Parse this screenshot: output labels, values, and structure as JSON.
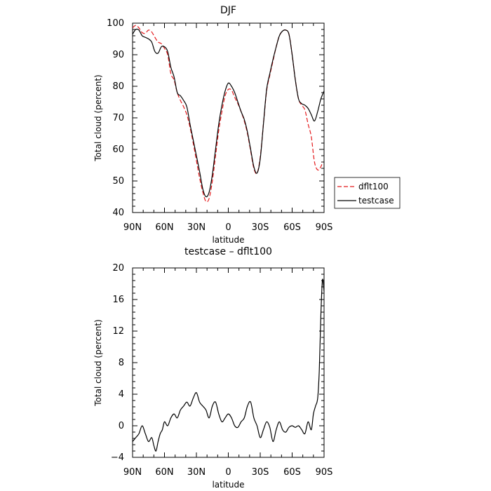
{
  "chart_data": [
    {
      "type": "line",
      "title": "DJF",
      "xlabel": "latitude",
      "ylabel": "Total cloud (percent)",
      "xlim": [
        -90,
        90
      ],
      "ylim": [
        40,
        100
      ],
      "xticks": [
        -90,
        -60,
        -30,
        0,
        30,
        60,
        90
      ],
      "xtick_labels": [
        "90N",
        "60N",
        "30N",
        "0",
        "30S",
        "60S",
        "90S"
      ],
      "yticks": [
        40,
        50,
        60,
        70,
        80,
        90,
        100
      ],
      "ytick_labels": [
        "40",
        "50",
        "60",
        "70",
        "80",
        "90",
        "100"
      ],
      "legend_position": "right",
      "grid": false,
      "series": [
        {
          "name": "dflt100",
          "color": "#e41a1c",
          "dash": "dashed",
          "x": [
            -90,
            -87,
            -84,
            -81,
            -78,
            -75,
            -72,
            -69,
            -66,
            -63,
            -60,
            -57,
            -54,
            -51,
            -48,
            -45,
            -42,
            -39,
            -36,
            -33,
            -30,
            -27,
            -24,
            -21,
            -18,
            -15,
            -12,
            -9,
            -6,
            -3,
            0,
            3,
            6,
            9,
            12,
            15,
            18,
            21,
            24,
            27,
            30,
            33,
            36,
            39,
            42,
            45,
            48,
            51,
            54,
            57,
            60,
            63,
            66,
            69,
            72,
            75,
            78,
            81,
            84,
            87,
            88.5
          ],
          "y": [
            98.5,
            99.3,
            98.5,
            97.0,
            96.8,
            97.8,
            97.2,
            95.5,
            94.0,
            93.5,
            92.0,
            90.0,
            84.0,
            82.0,
            78.0,
            75.5,
            73.5,
            71.0,
            67.0,
            62.0,
            56.5,
            51.0,
            46.5,
            43.5,
            44.5,
            50.0,
            58.0,
            66.0,
            72.0,
            77.0,
            79.0,
            78.8,
            76.5,
            74.5,
            72.0,
            69.0,
            65.0,
            59.5,
            54.0,
            52.5,
            57.5,
            68.0,
            78.5,
            83.5,
            88.0,
            92.5,
            96.0,
            97.5,
            97.8,
            96.5,
            90.0,
            82.0,
            76.0,
            74.0,
            72.5,
            68.0,
            64.0,
            56.0,
            53.5,
            54.5,
            56.0
          ]
        },
        {
          "name": "testcase",
          "color": "#000000",
          "dash": "solid",
          "x": [
            -90,
            -87,
            -84,
            -81,
            -78,
            -75,
            -72,
            -69,
            -66,
            -63,
            -60,
            -57,
            -54,
            -51,
            -48,
            -45,
            -42,
            -39,
            -36,
            -33,
            -30,
            -27,
            -24,
            -21,
            -18,
            -15,
            -12,
            -9,
            -6,
            -3,
            0,
            3,
            6,
            9,
            12,
            15,
            18,
            21,
            24,
            27,
            30,
            33,
            36,
            39,
            42,
            45,
            48,
            51,
            54,
            57,
            60,
            63,
            66,
            69,
            72,
            75,
            78,
            81,
            84,
            87,
            90
          ],
          "y": [
            96.5,
            98.0,
            97.8,
            96.0,
            95.5,
            95.0,
            94.0,
            91.0,
            90.5,
            92.5,
            92.5,
            91.0,
            86.0,
            83.0,
            78.0,
            77.0,
            75.5,
            73.5,
            68.0,
            63.0,
            58.0,
            53.0,
            47.5,
            45.0,
            46.5,
            52.0,
            60.0,
            68.0,
            74.0,
            78.5,
            81.0,
            80.0,
            78.0,
            75.0,
            72.0,
            69.5,
            65.5,
            60.0,
            54.5,
            52.5,
            57.0,
            68.0,
            79.0,
            84.0,
            88.5,
            92.5,
            96.0,
            97.5,
            97.8,
            96.5,
            90.0,
            82.0,
            76.0,
            74.5,
            74.0,
            73.0,
            71.0,
            69.0,
            72.0,
            76.0,
            78.5
          ]
        }
      ]
    },
    {
      "type": "line",
      "title": "testcase – dflt100",
      "xlabel": "latitude",
      "ylabel": "Total cloud (percent)",
      "xlim": [
        -90,
        90
      ],
      "ylim": [
        -4,
        20
      ],
      "xticks": [
        -90,
        -60,
        -30,
        0,
        30,
        60,
        90
      ],
      "xtick_labels": [
        "90N",
        "60N",
        "30N",
        "0",
        "30S",
        "60S",
        "90S"
      ],
      "yticks": [
        -4,
        0,
        4,
        8,
        12,
        16,
        20
      ],
      "ytick_labels": [
        "−4",
        "0",
        "4",
        "8",
        "12",
        "16",
        "20"
      ],
      "grid": false,
      "series": [
        {
          "color": "#000000",
          "dash": "solid",
          "x": [
            -90,
            -87,
            -84,
            -81,
            -78,
            -75,
            -72,
            -70,
            -68,
            -66,
            -64,
            -62,
            -60,
            -57,
            -54,
            -51,
            -48,
            -45,
            -42,
            -39,
            -36,
            -33,
            -30,
            -27,
            -24,
            -21,
            -18,
            -15,
            -12,
            -9,
            -6,
            -3,
            0,
            3,
            6,
            9,
            12,
            15,
            18,
            21,
            24,
            27,
            30,
            33,
            36,
            39,
            42,
            45,
            48,
            51,
            54,
            57,
            60,
            63,
            66,
            69,
            72,
            75,
            78,
            80,
            82,
            84,
            85.5,
            87,
            88.5,
            90
          ],
          "y": [
            -2.0,
            -1.5,
            -1.0,
            0.0,
            -1.0,
            -2.0,
            -1.5,
            -2.5,
            -3.2,
            -2.0,
            -1.0,
            -0.5,
            0.5,
            0.0,
            1.0,
            1.5,
            1.0,
            2.0,
            2.5,
            3.0,
            2.5,
            3.5,
            4.2,
            3.0,
            2.5,
            2.0,
            1.0,
            2.5,
            3.0,
            1.5,
            0.5,
            1.0,
            1.5,
            1.0,
            0.0,
            -0.2,
            0.5,
            1.0,
            2.5,
            3.0,
            1.0,
            0.0,
            -1.5,
            -0.5,
            0.5,
            -0.2,
            -2.0,
            -0.5,
            0.5,
            -0.5,
            -0.8,
            -0.2,
            0.0,
            -0.2,
            0.0,
            -0.5,
            -1.0,
            0.5,
            -0.5,
            1.5,
            2.5,
            3.5,
            7.0,
            14.0,
            18.5,
            17.0
          ]
        }
      ]
    }
  ]
}
